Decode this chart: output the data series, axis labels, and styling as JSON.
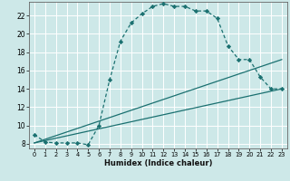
{
  "xlabel": "Humidex (Indice chaleur)",
  "background_color": "#cde8e8",
  "grid_color": "#ffffff",
  "line_color": "#1a7070",
  "xlim": [
    -0.5,
    23.5
  ],
  "ylim": [
    7.5,
    23.5
  ],
  "xticks": [
    0,
    1,
    2,
    3,
    4,
    5,
    6,
    7,
    8,
    9,
    10,
    11,
    12,
    13,
    14,
    15,
    16,
    17,
    18,
    19,
    20,
    21,
    22,
    23
  ],
  "yticks": [
    8,
    10,
    12,
    14,
    16,
    18,
    20,
    22
  ],
  "curve1_x": [
    0,
    1,
    2,
    3,
    4,
    5,
    6,
    7,
    8,
    9,
    10,
    11,
    12,
    13,
    14,
    15,
    16,
    17,
    18,
    19,
    20,
    21,
    22,
    23
  ],
  "curve1_y": [
    9.0,
    8.2,
    8.1,
    8.1,
    8.1,
    7.9,
    10.0,
    15.0,
    19.2,
    21.2,
    22.2,
    23.0,
    23.3,
    23.0,
    23.0,
    22.5,
    22.5,
    21.7,
    18.7,
    17.2,
    17.2,
    15.3,
    14.0,
    14.0
  ],
  "line2_x": [
    0,
    23
  ],
  "line2_y": [
    8.1,
    14.0
  ],
  "line3_x": [
    0,
    23
  ],
  "line3_y": [
    8.1,
    17.2
  ]
}
